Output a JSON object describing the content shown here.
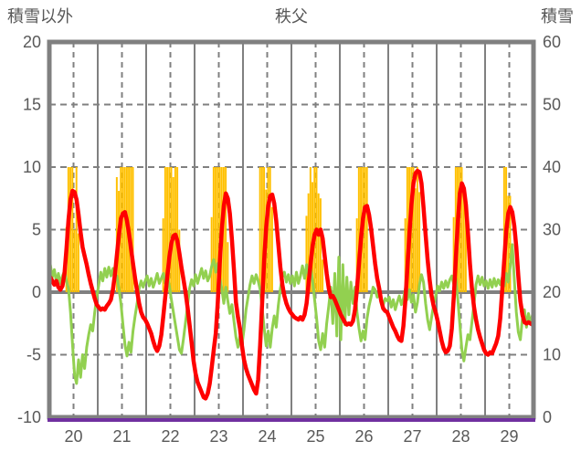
{
  "header": {
    "left_caption": "積雪以外",
    "title": "秩父",
    "right_caption": "積雪"
  },
  "chart_data": {
    "type": "line+bar",
    "title": "秩父",
    "x_axis": {
      "start_day": 20,
      "end_day": 30,
      "labels": [
        "20",
        "21",
        "22",
        "23",
        "24",
        "25",
        "26",
        "27",
        "28",
        "29"
      ],
      "solid_gridlines_at": "day boundaries",
      "dashed_gridlines_at": "noon of each day"
    },
    "left_axis": {
      "caption": "積雪以外",
      "min": -10,
      "max": 20,
      "tick_step": 5,
      "tick_values": [
        20,
        15,
        10,
        5,
        0,
        -5,
        -10
      ],
      "tick_labels": [
        "20",
        "15",
        "10",
        "5",
        "0",
        "-5",
        "-10"
      ]
    },
    "right_axis": {
      "caption": "積雪",
      "min": 0,
      "max": 60,
      "tick_step": 10,
      "tick_values": [
        60,
        50,
        40,
        30,
        20,
        10,
        0
      ],
      "tick_labels": [
        "60",
        "50",
        "40",
        "30",
        "20",
        "10",
        "0"
      ]
    },
    "colors": {
      "red_line": "#ff0000",
      "green_line": "#92d050",
      "orange_bars": "#ffc000",
      "purple_line": "#7030a0",
      "grid_gray": "#808080",
      "text_gray": "#595959",
      "background": "#ffffff"
    },
    "series": {
      "red_line": {
        "axis": "left",
        "color": "#ff0000",
        "hourly": [
          1.2,
          0.9,
          0.6,
          0.9,
          0.4,
          0.2,
          0.5,
          1.5,
          3.5,
          5.8,
          7.4,
          8.1,
          8.0,
          7.4,
          6.2,
          4.8,
          3.6,
          2.9,
          2.2,
          1.4,
          0.7,
          0.1,
          -0.5,
          -1.0,
          -1.2,
          -1.4,
          -1.3,
          -1.4,
          -1.1,
          -0.9,
          -0.6,
          0.2,
          1.4,
          3.0,
          4.6,
          5.9,
          6.3,
          6.4,
          5.7,
          4.7,
          3.5,
          2.3,
          1.1,
          0.1,
          -0.9,
          -1.6,
          -2.0,
          -2.2,
          -2.5,
          -2.9,
          -3.3,
          -3.9,
          -4.4,
          -4.7,
          -4.3,
          -3.4,
          -1.9,
          -0.3,
          1.3,
          2.8,
          3.9,
          4.5,
          4.6,
          4.1,
          3.1,
          2.0,
          1.0,
          0.0,
          -1.2,
          -2.6,
          -4.0,
          -5.5,
          -6.5,
          -7.2,
          -7.6,
          -8.0,
          -8.4,
          -8.5,
          -8.1,
          -7.3,
          -6.0,
          -4.6,
          -3.3,
          -0.8,
          2.4,
          5.0,
          6.9,
          7.9,
          7.5,
          6.3,
          4.2,
          1.8,
          -0.8,
          -2.0,
          -2.9,
          -4.3,
          -5.4,
          -6.1,
          -6.6,
          -7.0,
          -7.4,
          -7.8,
          -8.1,
          -7.0,
          -4.2,
          -0.8,
          2.6,
          5.2,
          6.9,
          7.7,
          7.8,
          7.1,
          5.7,
          3.9,
          2.0,
          0.6,
          -0.3,
          -0.9,
          -1.3,
          -1.6,
          -1.8,
          -2.0,
          -2.1,
          -2.2,
          -2.0,
          -2.2,
          -1.8,
          -0.9,
          0.7,
          2.3,
          3.7,
          4.6,
          5.0,
          4.6,
          5.0,
          4.3,
          2.9,
          1.5,
          0.3,
          -0.4,
          -0.3,
          -0.6,
          -1.0,
          -1.4,
          -1.8,
          -2.1,
          -2.4,
          -2.6,
          -2.5,
          -2.6,
          -2.3,
          -1.4,
          0.3,
          2.3,
          4.3,
          5.9,
          6.8,
          6.9,
          6.2,
          5.1,
          3.7,
          2.3,
          1.1,
          0.3,
          -0.7,
          -1.3,
          -1.5,
          -1.6,
          -2.0,
          -2.4,
          -2.8,
          -3.1,
          -3.5,
          -3.8,
          -3.9,
          -2.7,
          -0.6,
          2.0,
          4.7,
          7.0,
          8.7,
          9.5,
          9.7,
          9.6,
          8.7,
          6.8,
          4.6,
          2.6,
          1.0,
          -0.3,
          -1.1,
          -1.6,
          -2.3,
          -3.1,
          -3.9,
          -4.5,
          -4.8,
          -4.7,
          -4.3,
          -2.9,
          -0.3,
          2.7,
          5.6,
          7.9,
          8.7,
          8.3,
          7.0,
          4.8,
          2.3,
          0.3,
          -1.2,
          -2.2,
          -3.0,
          -3.6,
          -4.1,
          -4.6,
          -4.9,
          -5.0,
          -4.8,
          -4.9,
          -4.5,
          -4.1,
          -3.5,
          -2.1,
          0.2,
          2.6,
          4.9,
          6.3,
          6.8,
          6.4,
          5.3,
          3.6,
          1.3,
          -0.7,
          -1.8,
          -2.4,
          -2.5,
          -2.4,
          -2.5,
          -2.6
        ]
      },
      "green_line": {
        "axis": "left",
        "color": "#92d050",
        "hourly": [
          2.2,
          1.2,
          1.8,
          0.8,
          1.5,
          0.7,
          1.3,
          1.7,
          0.9,
          0.3,
          -1.6,
          -4.2,
          -6.6,
          -7.3,
          -5.4,
          -6.8,
          -5.0,
          -6.1,
          -4.4,
          -3.4,
          -2.6,
          -3.1,
          -1.6,
          -0.4,
          0.6,
          1.6,
          0.9,
          1.9,
          1.2,
          2.0,
          1.3,
          1.9,
          0.9,
          1.3,
          0.3,
          -0.9,
          -2.6,
          -4.2,
          -5.1,
          -4.0,
          -4.8,
          -3.1,
          -1.9,
          -0.9,
          0.3,
          0.9,
          0.4,
          0.9,
          1.3,
          0.5,
          1.1,
          0.4,
          0.9,
          1.5,
          0.7,
          1.1,
          1.5,
          0.7,
          1.3,
          0.5,
          -0.6,
          -1.6,
          -2.6,
          -3.6,
          -4.6,
          -4.9,
          -3.7,
          -2.4,
          -1.1,
          0.3,
          1.0,
          0.5,
          1.4,
          0.7,
          1.3,
          1.9,
          1.1,
          1.7,
          0.9,
          1.3,
          2.1,
          2.6,
          1.6,
          2.3,
          1.1,
          0.3,
          -0.9,
          0.4,
          -0.7,
          -1.7,
          -1.0,
          -2.3,
          -3.6,
          -4.4,
          -3.5,
          -4.2,
          -3.0,
          -1.4,
          -0.4,
          0.6,
          1.3,
          0.7,
          1.4,
          0.9,
          0.2,
          -1.3,
          -2.9,
          -4.3,
          -3.1,
          -4.4,
          -2.9,
          -1.9,
          -2.8,
          -1.1,
          0.3,
          1.2,
          1.6,
          0.8,
          1.4,
          0.7,
          1.3,
          0.5,
          1.6,
          0.7,
          1.3,
          2.1,
          1.1,
          2.2,
          1.3,
          2.0,
          0.9,
          -0.6,
          -2.1,
          -3.9,
          -4.6,
          -3.3,
          -4.4,
          -2.5,
          -1.1,
          0.4,
          -2.5,
          1.5,
          -3.5,
          2.8,
          -3.8,
          2.2,
          -2.6,
          1.2,
          -1.8,
          0.8,
          -0.9,
          0.4,
          -1.6,
          -2.9,
          -3.9,
          -3.1,
          -3.8,
          -2.1,
          -1.1,
          -0.4,
          0.4,
          0.2,
          -0.4,
          -0.2,
          -0.6,
          -1.0,
          -0.5,
          -0.7,
          -0.4,
          -1.2,
          -0.6,
          -1.4,
          -0.8,
          -0.3,
          -1.0,
          -0.5,
          0.3,
          -0.6,
          0.2,
          -0.8,
          -0.2,
          -1.6,
          -0.8,
          0.6,
          1.4,
          0.8,
          -0.9,
          -2.2,
          -3.0,
          -2.0,
          -1.0,
          -0.3,
          0.5,
          0.1,
          0.8,
          0.3,
          0.9,
          0.4,
          1.0,
          1.3,
          0.6,
          1.1,
          -0.6,
          -2.6,
          -4.6,
          -5.5,
          -4.4,
          -3.4,
          -3.8,
          -2.4,
          -0.9,
          0.6,
          1.3,
          0.6,
          1.2,
          0.5,
          0.9,
          0.3,
          1.0,
          0.4,
          1.1,
          0.5,
          1.0,
          0.6,
          1.2,
          0.5,
          1.5,
          0.8,
          2.1,
          3.8,
          1.0,
          -1.6,
          -3.2,
          -3.8,
          -2.1,
          -1.4,
          -2.8,
          -1.7,
          -2.5,
          -1.8
        ]
      },
      "orange_bars": {
        "axis": "left",
        "color": "#ffc000",
        "baseline": 0,
        "hourly": [
          0,
          0,
          0,
          0,
          0,
          0,
          0,
          0,
          5.2,
          10,
          10,
          10,
          5,
          10,
          4.7,
          0,
          0,
          0,
          0,
          0,
          0,
          0,
          0,
          0,
          0,
          0,
          0,
          0,
          0,
          0,
          0,
          0,
          0,
          9.2,
          8.1,
          10,
          10,
          10,
          10,
          10,
          10,
          10,
          0,
          0,
          0,
          0,
          0,
          0,
          0,
          0,
          0,
          0,
          0,
          0,
          0,
          0,
          5.9,
          10,
          10,
          10,
          10,
          9.2,
          10,
          10,
          5,
          0,
          0,
          0,
          0,
          0,
          0,
          0,
          0,
          0,
          0,
          0,
          0,
          0,
          0,
          0,
          6,
          10,
          10,
          10,
          10,
          10,
          10,
          10,
          4,
          0,
          0,
          0,
          0,
          0,
          0,
          0,
          0,
          0,
          0,
          0,
          0,
          0,
          0,
          0,
          10,
          10,
          10,
          8.2,
          10,
          10,
          6.8,
          0,
          0,
          0,
          0,
          0,
          0,
          0,
          0,
          0,
          0,
          0,
          0,
          0,
          0,
          0,
          0,
          6.1,
          7.9,
          10,
          8.8,
          10,
          10,
          7.9,
          7.5,
          2.6,
          0,
          0,
          0,
          0,
          0,
          0,
          0,
          0,
          0,
          0,
          0,
          0,
          0,
          0,
          0,
          0,
          5.9,
          10,
          10,
          10,
          10,
          10,
          0,
          0,
          0,
          0,
          0,
          0,
          0,
          0,
          0,
          0,
          0,
          0,
          0,
          0,
          0,
          0,
          0,
          0,
          5.9,
          10,
          10,
          10,
          10,
          8.3,
          10,
          8,
          0,
          0,
          0,
          0,
          0,
          0,
          0,
          0,
          0,
          0,
          0,
          0,
          0,
          0,
          0,
          0,
          6,
          10,
          10,
          10,
          10,
          8,
          7.7,
          0,
          0,
          0,
          0,
          0,
          0,
          0,
          0,
          0,
          0,
          0,
          0,
          0,
          0,
          0,
          0,
          0,
          0,
          10,
          10,
          7.7,
          7.7,
          0,
          0,
          0,
          0,
          0,
          0,
          0,
          0,
          0,
          0,
          0
        ]
      },
      "purple_line": {
        "axis": "right",
        "color": "#7030a0",
        "constant_value": 0
      }
    }
  }
}
